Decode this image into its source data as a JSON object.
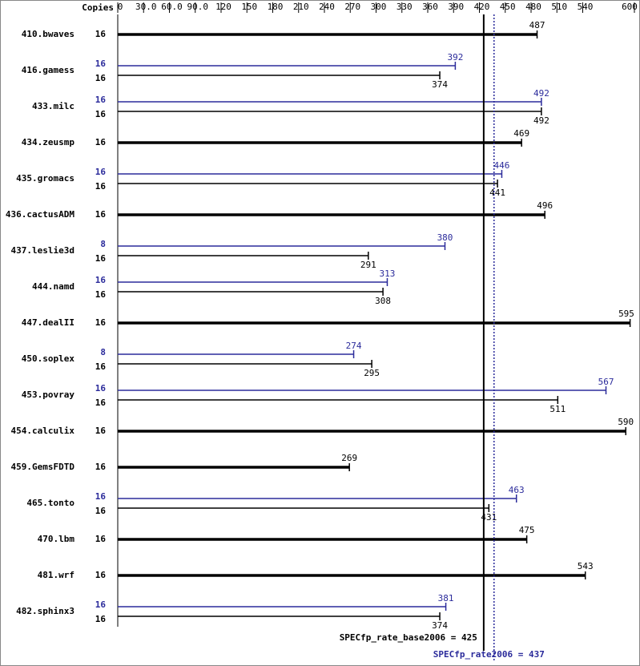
{
  "chart_data": {
    "type": "bar",
    "copies_label": "Copies",
    "categories": [
      "410.bwaves",
      "416.gamess",
      "433.milc",
      "434.zeusmp",
      "435.gromacs",
      "436.cactusADM",
      "437.leslie3d",
      "444.namd",
      "447.dealII",
      "450.soplex",
      "453.povray",
      "454.calculix",
      "459.GemsFDTD",
      "465.tonto",
      "470.lbm",
      "481.wrf",
      "482.sphinx3"
    ],
    "series": [
      {
        "color": "#000000",
        "copies": [
          16,
          16,
          16,
          16,
          16,
          16,
          16,
          16,
          16,
          16,
          16,
          16,
          16,
          16,
          16,
          16,
          16
        ],
        "values": [
          487,
          374,
          492,
          469,
          441,
          496,
          291,
          308,
          595,
          295,
          511,
          590,
          269,
          431,
          475,
          543,
          374
        ]
      },
      {
        "color": "#2b2b9b",
        "copies": [
          null,
          16,
          16,
          null,
          16,
          null,
          8,
          16,
          null,
          8,
          16,
          null,
          null,
          16,
          null,
          null,
          16
        ],
        "values": [
          null,
          392,
          492,
          null,
          446,
          null,
          380,
          313,
          null,
          274,
          567,
          null,
          null,
          463,
          null,
          null,
          381
        ]
      }
    ],
    "xlim": [
      0,
      600
    ],
    "xticks": [
      0,
      {
        "value": 30,
        "label": "30.0"
      },
      {
        "value": 60,
        "label": "60.0"
      },
      {
        "value": 90,
        "label": "90.0"
      },
      120,
      150,
      180,
      210,
      240,
      270,
      300,
      330,
      360,
      390,
      420,
      450,
      480,
      510,
      540,
      600
    ],
    "reference_lines": [
      {
        "value": 425,
        "label": "SPECfp_rate_base2006 = 425",
        "color": "#000000",
        "style": "solid"
      },
      {
        "value": 437,
        "label": "SPECfp_rate2006 = 437",
        "color": "#2b2b9b",
        "style": "dotted"
      }
    ]
  }
}
